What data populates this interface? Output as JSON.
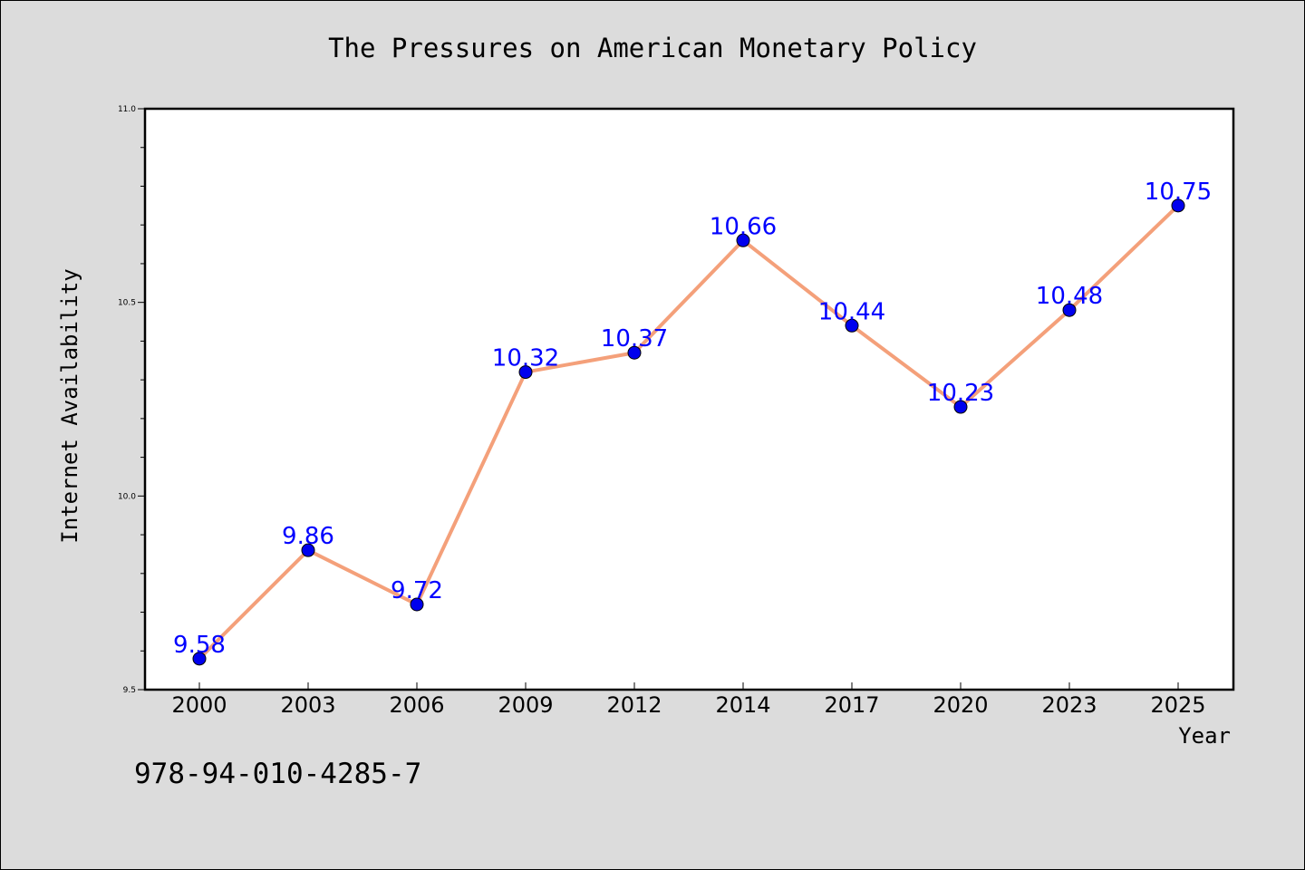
{
  "chart_data": {
    "type": "line",
    "title": "The Pressures on American Monetary Policy",
    "xlabel": "Year",
    "ylabel": "Internet Availability",
    "categories": [
      "2000",
      "2003",
      "2006",
      "2009",
      "2012",
      "2014",
      "2017",
      "2020",
      "2023",
      "2025"
    ],
    "series": [
      {
        "values": [
          9.58,
          9.86,
          9.72,
          10.32,
          10.37,
          10.66,
          10.44,
          10.23,
          10.48,
          10.75
        ],
        "line_color": "#f4a07a",
        "marker_color": "#0000ee"
      }
    ],
    "data_labels": [
      "9.58",
      "9.86",
      "9.72",
      "10.32",
      "10.37",
      "10.66",
      "10.44",
      "10.23",
      "10.48",
      "10.75"
    ],
    "ylim": [
      9.5,
      11.0
    ],
    "yticks": [
      "9.5",
      "10.0",
      "10.5",
      "11.0"
    ],
    "grid": false,
    "label_color": "#0000ff"
  },
  "footer": {
    "isbn": "978-94-010-4285-7"
  }
}
